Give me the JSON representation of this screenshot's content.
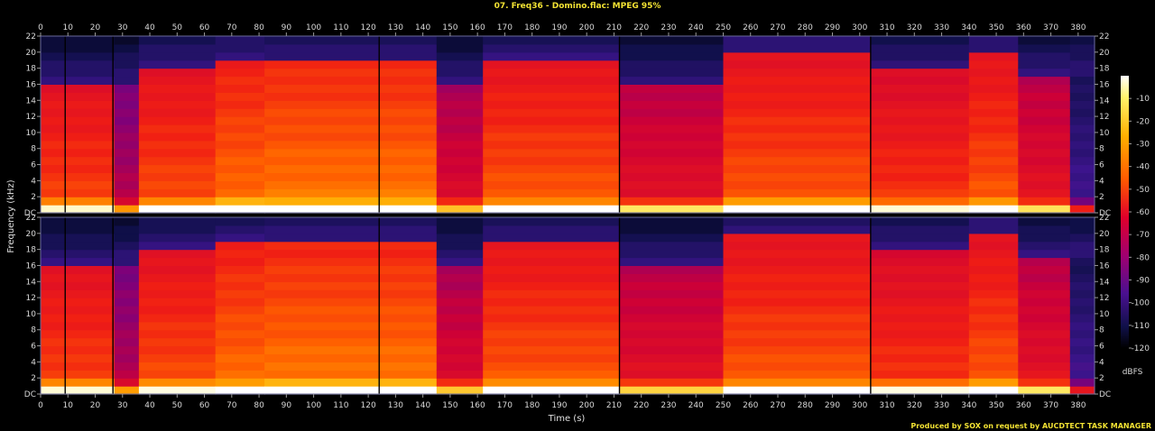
{
  "window_title": "07. Freq36 - Domino.flac: MPEG 95%",
  "credit": "Produced by SOX on request by AUCDTECT TASK MANAGER",
  "colors": {
    "background": "#000000",
    "title": "#f2e233",
    "text": "#d8d8d8"
  },
  "chart_data": {
    "type": "heatmap",
    "title": "07. Freq36 - Domino.flac: MPEG 95%",
    "xlabel": "Time (s)",
    "ylabel": "Frequency (kHz)",
    "xlim": [
      0,
      386
    ],
    "ylim": [
      0,
      22
    ],
    "x_ticks": [
      "0",
      "10",
      "20",
      "30",
      "40",
      "50",
      "60",
      "70",
      "80",
      "90",
      "100",
      "110",
      "120",
      "130",
      "140",
      "150",
      "160",
      "170",
      "180",
      "190",
      "200",
      "210",
      "220",
      "230",
      "240",
      "250",
      "260",
      "270",
      "280",
      "290",
      "300",
      "310",
      "320",
      "330",
      "340",
      "350",
      "360",
      "370",
      "380"
    ],
    "y_ticks": [
      "DC",
      "2",
      "4",
      "6",
      "8",
      "10",
      "12",
      "14",
      "16",
      "18",
      "20",
      "22"
    ],
    "channels": 2,
    "colorbar": {
      "label": "dBFS",
      "ticks": [
        "-10",
        "-20",
        "-30",
        "-40",
        "-50",
        "-60",
        "-70",
        "-80",
        "-90",
        "-100",
        "-110",
        "-120"
      ],
      "range": [
        -120,
        0
      ]
    },
    "segments": [
      {
        "start": 0,
        "end": 27,
        "level": -42,
        "cutoff_khz": 16
      },
      {
        "start": 27,
        "end": 36,
        "level": -68,
        "cutoff_khz": 16
      },
      {
        "start": 36,
        "end": 64,
        "level": -40,
        "cutoff_khz": 18
      },
      {
        "start": 64,
        "end": 82,
        "level": -34,
        "cutoff_khz": 19
      },
      {
        "start": 82,
        "end": 145,
        "level": -32,
        "cutoff_khz": 19
      },
      {
        "start": 145,
        "end": 162,
        "level": -58,
        "cutoff_khz": 16
      },
      {
        "start": 162,
        "end": 212,
        "level": -38,
        "cutoff_khz": 19
      },
      {
        "start": 212,
        "end": 250,
        "level": -55,
        "cutoff_khz": 16
      },
      {
        "start": 250,
        "end": 304,
        "level": -38,
        "cutoff_khz": 20
      },
      {
        "start": 304,
        "end": 340,
        "level": -44,
        "cutoff_khz": 18
      },
      {
        "start": 340,
        "end": 358,
        "level": -38,
        "cutoff_khz": 20
      },
      {
        "start": 358,
        "end": 377,
        "level": -54,
        "cutoff_khz": 17
      },
      {
        "start": 377,
        "end": 386,
        "level": -92,
        "cutoff_khz": 17
      }
    ],
    "dropouts_s": [
      9,
      26.5,
      124,
      212,
      304
    ],
    "grid": false
  }
}
